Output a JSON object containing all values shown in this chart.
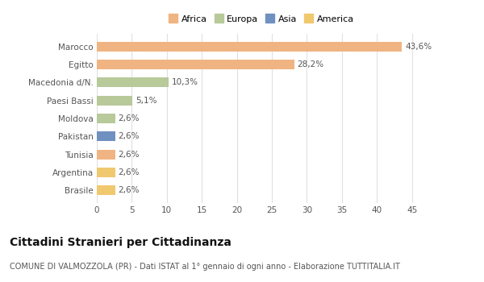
{
  "categories": [
    "Marocco",
    "Egitto",
    "Macedonia d/N.",
    "Paesi Bassi",
    "Moldova",
    "Pakistan",
    "Tunisia",
    "Argentina",
    "Brasile"
  ],
  "values": [
    43.6,
    28.2,
    10.3,
    5.1,
    2.6,
    2.6,
    2.6,
    2.6,
    2.6
  ],
  "labels": [
    "43,6%",
    "28,2%",
    "10,3%",
    "5,1%",
    "2,6%",
    "2,6%",
    "2,6%",
    "2,6%",
    "2,6%"
  ],
  "bar_colors": [
    "#f0b482",
    "#f0b482",
    "#b8c99a",
    "#b8c99a",
    "#b8c99a",
    "#7090c0",
    "#f0b482",
    "#f0c86e",
    "#f0c86e"
  ],
  "legend_labels": [
    "Africa",
    "Europa",
    "Asia",
    "America"
  ],
  "legend_colors": [
    "#f0b482",
    "#b8c99a",
    "#7090c0",
    "#f0c86e"
  ],
  "xlim": [
    0,
    47
  ],
  "xticks": [
    0,
    5,
    10,
    15,
    20,
    25,
    30,
    35,
    40,
    45
  ],
  "title": "Cittadini Stranieri per Cittadinanza",
  "subtitle": "COMUNE DI VALMOZZOLA (PR) - Dati ISTAT al 1° gennaio di ogni anno - Elaborazione TUTTITALIA.IT",
  "background_color": "#ffffff",
  "grid_color": "#e0e0e0",
  "bar_height": 0.55,
  "label_fontsize": 7.5,
  "tick_fontsize": 7.5,
  "title_fontsize": 10,
  "subtitle_fontsize": 7,
  "legend_fontsize": 8
}
